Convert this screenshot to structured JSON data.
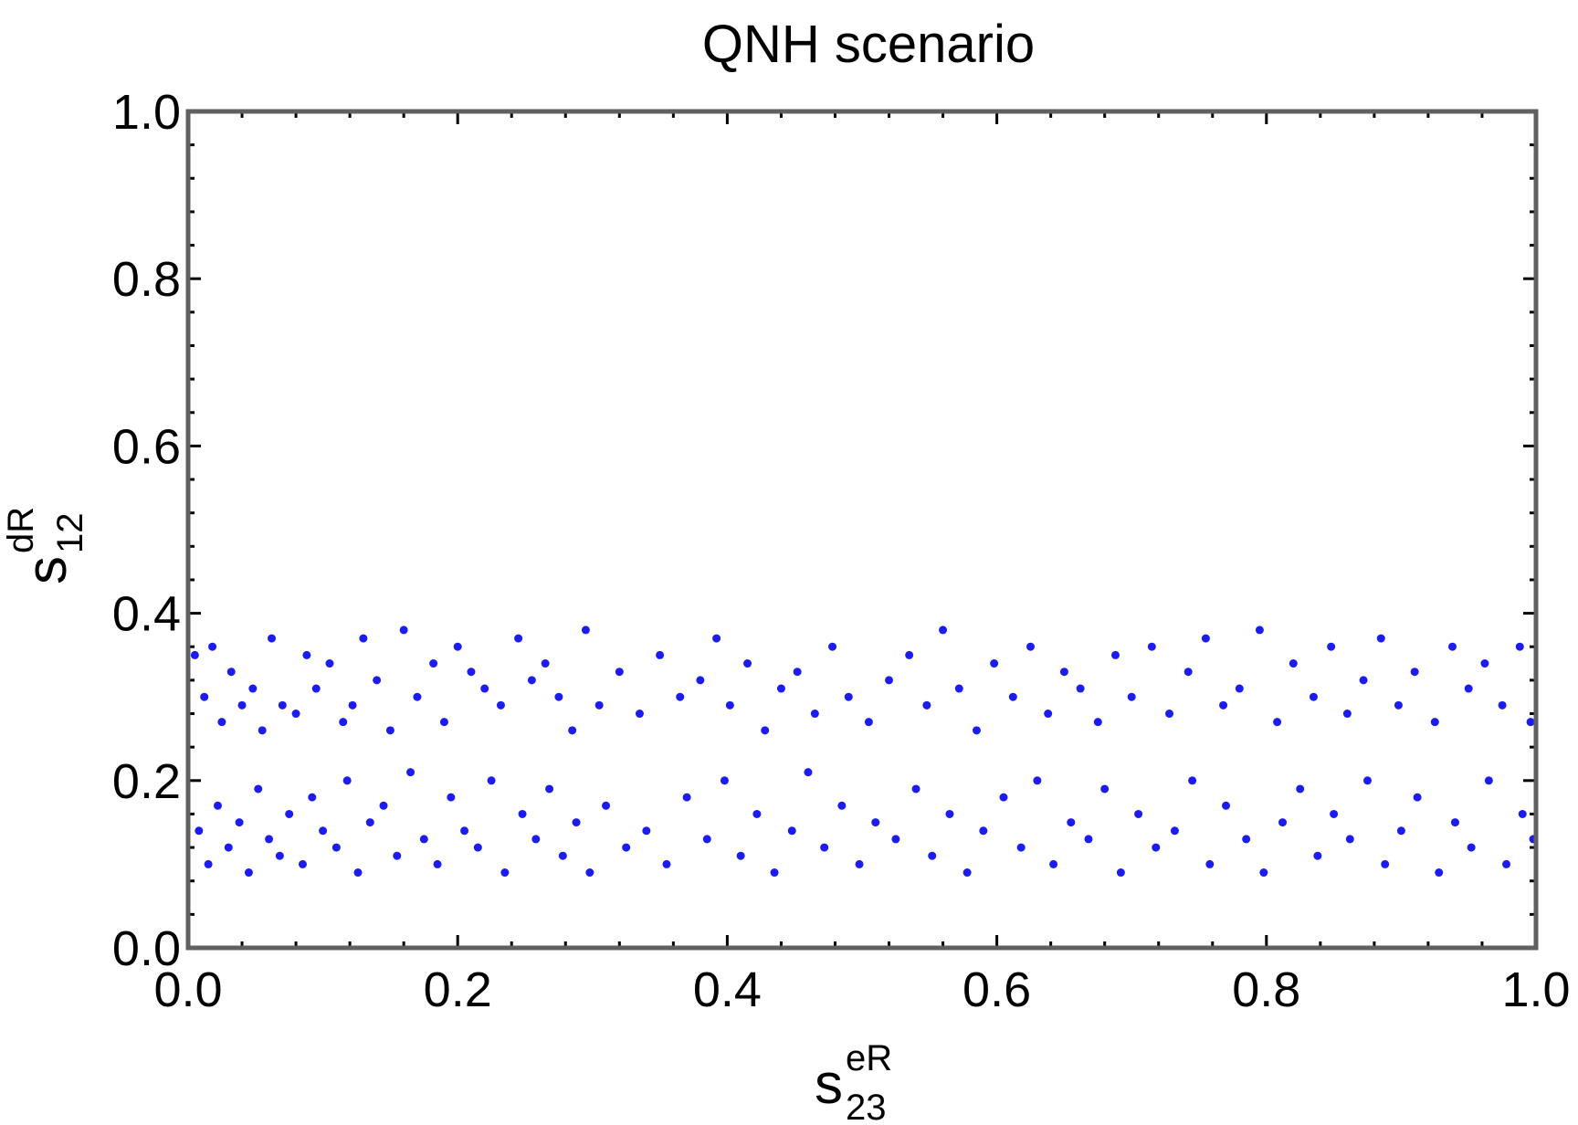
{
  "chart_data": {
    "type": "scatter",
    "title": "QNH scenario",
    "xlabel": {
      "base": "s",
      "sup": "eR",
      "sub": "23"
    },
    "ylabel": {
      "base": "s",
      "sup": "dR",
      "sub": "12"
    },
    "xlim": [
      0.0,
      1.0
    ],
    "ylim": [
      0.0,
      1.0
    ],
    "xticks": [
      "0.0",
      "0.2",
      "0.4",
      "0.6",
      "0.8",
      "1.0"
    ],
    "yticks": [
      "0.0",
      "0.2",
      "0.4",
      "0.6",
      "0.8",
      "1.0"
    ],
    "grid": false,
    "marker_color": "#1c1cf0",
    "frame_color": "#606060",
    "series": [
      {
        "points": [
          [
            0.005,
            0.35
          ],
          [
            0.012,
            0.3
          ],
          [
            0.018,
            0.36
          ],
          [
            0.025,
            0.27
          ],
          [
            0.032,
            0.33
          ],
          [
            0.04,
            0.29
          ],
          [
            0.048,
            0.31
          ],
          [
            0.055,
            0.26
          ],
          [
            0.062,
            0.37
          ],
          [
            0.07,
            0.29
          ],
          [
            0.08,
            0.28
          ],
          [
            0.088,
            0.35
          ],
          [
            0.095,
            0.31
          ],
          [
            0.105,
            0.34
          ],
          [
            0.115,
            0.27
          ],
          [
            0.122,
            0.29
          ],
          [
            0.13,
            0.37
          ],
          [
            0.14,
            0.32
          ],
          [
            0.15,
            0.26
          ],
          [
            0.16,
            0.38
          ],
          [
            0.17,
            0.3
          ],
          [
            0.182,
            0.34
          ],
          [
            0.19,
            0.27
          ],
          [
            0.2,
            0.36
          ],
          [
            0.21,
            0.33
          ],
          [
            0.22,
            0.31
          ],
          [
            0.232,
            0.29
          ],
          [
            0.245,
            0.37
          ],
          [
            0.255,
            0.32
          ],
          [
            0.265,
            0.34
          ],
          [
            0.275,
            0.3
          ],
          [
            0.285,
            0.26
          ],
          [
            0.295,
            0.38
          ],
          [
            0.305,
            0.29
          ],
          [
            0.32,
            0.33
          ],
          [
            0.335,
            0.28
          ],
          [
            0.35,
            0.35
          ],
          [
            0.365,
            0.3
          ],
          [
            0.38,
            0.32
          ],
          [
            0.392,
            0.37
          ],
          [
            0.402,
            0.29
          ],
          [
            0.415,
            0.34
          ],
          [
            0.428,
            0.26
          ],
          [
            0.44,
            0.31
          ],
          [
            0.452,
            0.33
          ],
          [
            0.465,
            0.28
          ],
          [
            0.478,
            0.36
          ],
          [
            0.49,
            0.3
          ],
          [
            0.505,
            0.27
          ],
          [
            0.52,
            0.32
          ],
          [
            0.535,
            0.35
          ],
          [
            0.548,
            0.29
          ],
          [
            0.56,
            0.38
          ],
          [
            0.572,
            0.31
          ],
          [
            0.585,
            0.26
          ],
          [
            0.598,
            0.34
          ],
          [
            0.612,
            0.3
          ],
          [
            0.625,
            0.36
          ],
          [
            0.638,
            0.28
          ],
          [
            0.65,
            0.33
          ],
          [
            0.662,
            0.31
          ],
          [
            0.675,
            0.27
          ],
          [
            0.688,
            0.35
          ],
          [
            0.7,
            0.3
          ],
          [
            0.715,
            0.36
          ],
          [
            0.728,
            0.28
          ],
          [
            0.742,
            0.33
          ],
          [
            0.755,
            0.37
          ],
          [
            0.768,
            0.29
          ],
          [
            0.78,
            0.31
          ],
          [
            0.795,
            0.38
          ],
          [
            0.808,
            0.27
          ],
          [
            0.82,
            0.34
          ],
          [
            0.835,
            0.3
          ],
          [
            0.848,
            0.36
          ],
          [
            0.86,
            0.28
          ],
          [
            0.872,
            0.32
          ],
          [
            0.885,
            0.37
          ],
          [
            0.898,
            0.29
          ],
          [
            0.91,
            0.33
          ],
          [
            0.925,
            0.27
          ],
          [
            0.938,
            0.36
          ],
          [
            0.95,
            0.31
          ],
          [
            0.962,
            0.34
          ],
          [
            0.975,
            0.29
          ],
          [
            0.988,
            0.36
          ],
          [
            0.996,
            0.27
          ],
          [
            0.008,
            0.14
          ],
          [
            0.015,
            0.1
          ],
          [
            0.022,
            0.17
          ],
          [
            0.03,
            0.12
          ],
          [
            0.038,
            0.15
          ],
          [
            0.045,
            0.09
          ],
          [
            0.052,
            0.19
          ],
          [
            0.06,
            0.13
          ],
          [
            0.068,
            0.11
          ],
          [
            0.075,
            0.16
          ],
          [
            0.085,
            0.1
          ],
          [
            0.092,
            0.18
          ],
          [
            0.1,
            0.14
          ],
          [
            0.11,
            0.12
          ],
          [
            0.118,
            0.2
          ],
          [
            0.126,
            0.09
          ],
          [
            0.135,
            0.15
          ],
          [
            0.145,
            0.17
          ],
          [
            0.155,
            0.11
          ],
          [
            0.165,
            0.21
          ],
          [
            0.175,
            0.13
          ],
          [
            0.185,
            0.1
          ],
          [
            0.195,
            0.18
          ],
          [
            0.205,
            0.14
          ],
          [
            0.215,
            0.12
          ],
          [
            0.225,
            0.2
          ],
          [
            0.235,
            0.09
          ],
          [
            0.248,
            0.16
          ],
          [
            0.258,
            0.13
          ],
          [
            0.268,
            0.19
          ],
          [
            0.278,
            0.11
          ],
          [
            0.288,
            0.15
          ],
          [
            0.298,
            0.09
          ],
          [
            0.31,
            0.17
          ],
          [
            0.325,
            0.12
          ],
          [
            0.34,
            0.14
          ],
          [
            0.355,
            0.1
          ],
          [
            0.37,
            0.18
          ],
          [
            0.385,
            0.13
          ],
          [
            0.398,
            0.2
          ],
          [
            0.41,
            0.11
          ],
          [
            0.422,
            0.16
          ],
          [
            0.435,
            0.09
          ],
          [
            0.448,
            0.14
          ],
          [
            0.46,
            0.21
          ],
          [
            0.472,
            0.12
          ],
          [
            0.485,
            0.17
          ],
          [
            0.498,
            0.1
          ],
          [
            0.51,
            0.15
          ],
          [
            0.525,
            0.13
          ],
          [
            0.54,
            0.19
          ],
          [
            0.552,
            0.11
          ],
          [
            0.565,
            0.16
          ],
          [
            0.578,
            0.09
          ],
          [
            0.59,
            0.14
          ],
          [
            0.605,
            0.18
          ],
          [
            0.618,
            0.12
          ],
          [
            0.63,
            0.2
          ],
          [
            0.642,
            0.1
          ],
          [
            0.655,
            0.15
          ],
          [
            0.668,
            0.13
          ],
          [
            0.68,
            0.19
          ],
          [
            0.692,
            0.09
          ],
          [
            0.705,
            0.16
          ],
          [
            0.718,
            0.12
          ],
          [
            0.732,
            0.14
          ],
          [
            0.745,
            0.2
          ],
          [
            0.758,
            0.1
          ],
          [
            0.77,
            0.17
          ],
          [
            0.785,
            0.13
          ],
          [
            0.798,
            0.09
          ],
          [
            0.812,
            0.15
          ],
          [
            0.825,
            0.19
          ],
          [
            0.838,
            0.11
          ],
          [
            0.85,
            0.16
          ],
          [
            0.862,
            0.13
          ],
          [
            0.875,
            0.2
          ],
          [
            0.888,
            0.1
          ],
          [
            0.9,
            0.14
          ],
          [
            0.912,
            0.18
          ],
          [
            0.928,
            0.09
          ],
          [
            0.94,
            0.15
          ],
          [
            0.952,
            0.12
          ],
          [
            0.965,
            0.2
          ],
          [
            0.978,
            0.1
          ],
          [
            0.99,
            0.16
          ],
          [
            0.998,
            0.13
          ]
        ]
      }
    ]
  }
}
